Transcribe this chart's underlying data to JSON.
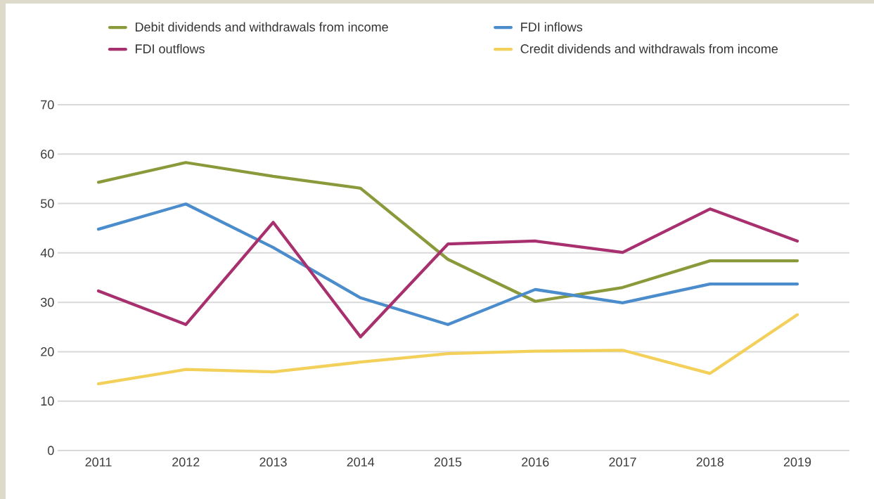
{
  "chart_data": {
    "type": "line",
    "categories": [
      "2011",
      "2012",
      "2013",
      "2014",
      "2015",
      "2016",
      "2017",
      "2018",
      "2019"
    ],
    "series": [
      {
        "name": "Debit dividends and withdrawals from income",
        "color": "#8a9a3a",
        "values": [
          54.3,
          58.3,
          55.5,
          53.1,
          38.7,
          30.2,
          33.0,
          38.4,
          38.4
        ]
      },
      {
        "name": "FDI inflows",
        "color": "#4a8ccc",
        "values": [
          44.8,
          49.9,
          41.1,
          30.9,
          25.5,
          32.6,
          29.9,
          33.7,
          33.7
        ]
      },
      {
        "name": "FDI outflows",
        "color": "#a8306e",
        "values": [
          32.3,
          25.5,
          46.2,
          23.0,
          41.8,
          42.4,
          40.1,
          48.9,
          42.4
        ]
      },
      {
        "name": "Credit dividends and withdrawals from income",
        "color": "#f2d05a",
        "values": [
          13.5,
          16.4,
          15.9,
          17.9,
          19.6,
          20.1,
          20.3,
          15.6,
          27.5
        ]
      }
    ],
    "ylim": [
      0,
      70
    ],
    "yticks": [
      0,
      10,
      20,
      30,
      40,
      50,
      60,
      70
    ],
    "grid": "y",
    "legend": "top",
    "marker": "none",
    "line_style": "solid"
  }
}
